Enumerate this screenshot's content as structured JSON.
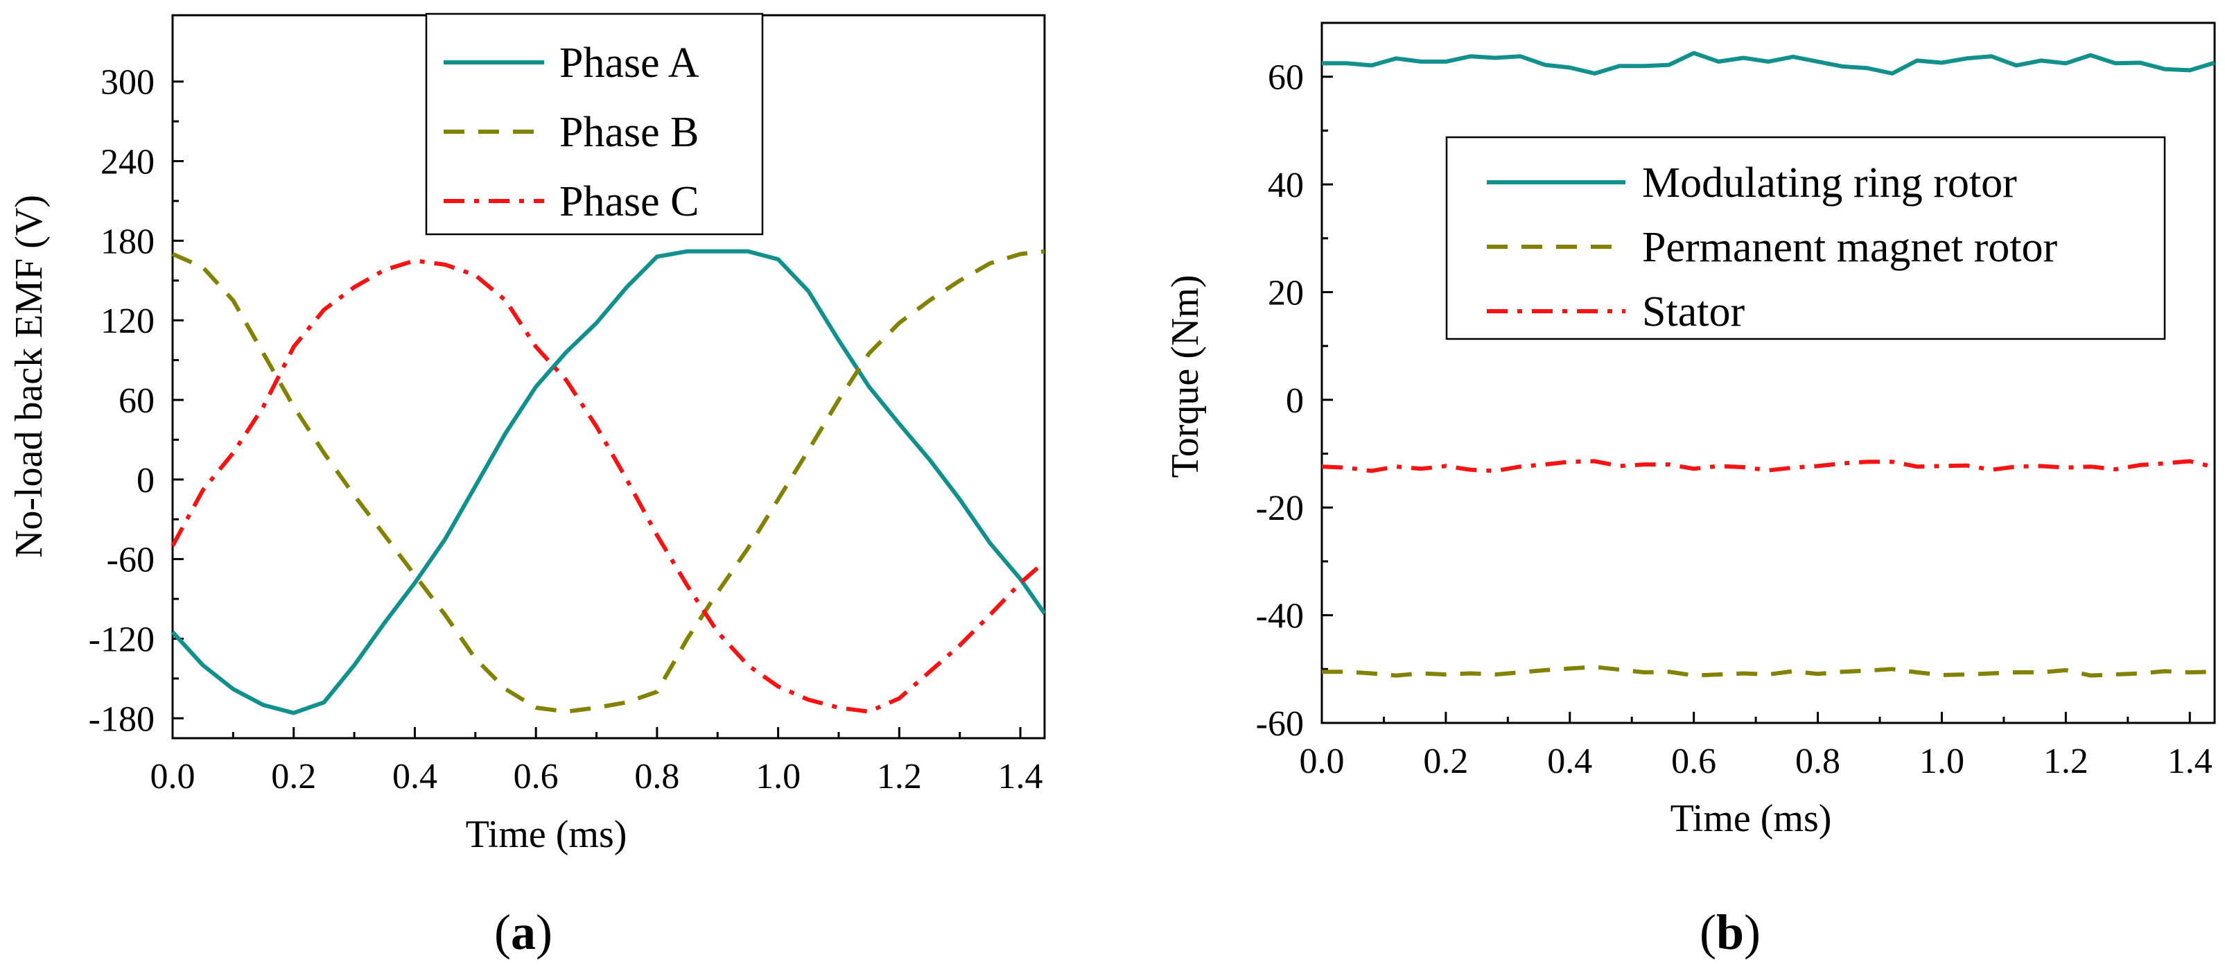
{
  "panels": [
    {
      "open": "(",
      "letter": "a",
      "close": ")"
    },
    {
      "open": "(",
      "letter": "b",
      "close": ")"
    }
  ],
  "chart_data": [
    {
      "type": "line",
      "xlabel": "Time (ms)",
      "ylabel": "No-load back EMF (V)",
      "xlim": [
        0,
        1.44
      ],
      "ylim": [
        -195,
        350
      ],
      "xticks": [
        0.0,
        0.2,
        0.4,
        0.6,
        0.8,
        1.0,
        1.2,
        1.4
      ],
      "xtick_labels": [
        "0.0",
        "0.2",
        "0.4",
        "0.6",
        "0.8",
        "1.0",
        "1.2",
        "1.4"
      ],
      "yticks": [
        -180,
        -120,
        -60,
        0,
        60,
        120,
        180,
        240,
        300
      ],
      "ytick_labels": [
        "-180",
        "-120",
        "-60",
        "0",
        "60",
        "120",
        "180",
        "240",
        "300"
      ],
      "legend_position": "top-center",
      "series": [
        {
          "name": "Phase A",
          "color": "#12908e",
          "dash": "solid",
          "x": [
            0,
            0.05,
            0.1,
            0.15,
            0.2,
            0.25,
            0.3,
            0.35,
            0.4,
            0.45,
            0.5,
            0.55,
            0.6,
            0.65,
            0.7,
            0.75,
            0.8,
            0.85,
            0.9,
            0.95,
            1.0,
            1.05,
            1.1,
            1.15,
            1.2,
            1.25,
            1.3,
            1.35,
            1.4,
            1.44
          ],
          "y": [
            -115,
            -140,
            -158,
            -170,
            -176,
            -168,
            -140,
            -108,
            -78,
            -45,
            -5,
            35,
            70,
            96,
            118,
            145,
            168,
            172,
            172,
            172,
            166,
            142,
            105,
            70,
            42,
            15,
            -15,
            -48,
            -75,
            -101
          ]
        },
        {
          "name": "Phase B",
          "color": "#828200",
          "dash": "dashed",
          "x": [
            0,
            0.05,
            0.1,
            0.15,
            0.2,
            0.25,
            0.3,
            0.35,
            0.4,
            0.45,
            0.5,
            0.55,
            0.6,
            0.65,
            0.7,
            0.75,
            0.8,
            0.85,
            0.9,
            0.95,
            1.0,
            1.05,
            1.1,
            1.15,
            1.2,
            1.25,
            1.3,
            1.35,
            1.4,
            1.44
          ],
          "y": [
            170,
            160,
            135,
            95,
            55,
            20,
            -12,
            -42,
            -72,
            -102,
            -135,
            -158,
            -172,
            -175,
            -172,
            -168,
            -160,
            -120,
            -85,
            -52,
            -15,
            22,
            60,
            95,
            118,
            135,
            150,
            163,
            170,
            172
          ]
        },
        {
          "name": "Phase C",
          "color": "#f51414",
          "dash": "dashdot",
          "x": [
            0,
            0.05,
            0.1,
            0.15,
            0.2,
            0.25,
            0.3,
            0.35,
            0.4,
            0.45,
            0.5,
            0.55,
            0.6,
            0.65,
            0.7,
            0.75,
            0.8,
            0.85,
            0.9,
            0.95,
            1.0,
            1.05,
            1.1,
            1.15,
            1.2,
            1.25,
            1.3,
            1.35,
            1.4,
            1.44
          ],
          "y": [
            -50,
            -8,
            20,
            55,
            100,
            128,
            145,
            158,
            165,
            162,
            154,
            135,
            100,
            75,
            40,
            0,
            -42,
            -80,
            -115,
            -140,
            -156,
            -166,
            -172,
            -175,
            -165,
            -145,
            -125,
            -102,
            -78,
            -62
          ]
        }
      ]
    },
    {
      "type": "line",
      "xlabel": "Time (ms)",
      "ylabel": "Torque (Nm)",
      "xlim": [
        0,
        1.44
      ],
      "ylim": [
        -60,
        70
      ],
      "xticks": [
        0.0,
        0.2,
        0.4,
        0.6,
        0.8,
        1.0,
        1.2,
        1.4
      ],
      "xtick_labels": [
        "0.0",
        "0.2",
        "0.4",
        "0.6",
        "0.8",
        "1.0",
        "1.2",
        "1.4"
      ],
      "yticks": [
        -60,
        -40,
        -20,
        0,
        20,
        40,
        60
      ],
      "ytick_labels": [
        "-60",
        "-40",
        "-20",
        "0",
        "20",
        "40",
        "60"
      ],
      "legend_position": "upper-center",
      "series": [
        {
          "name": "Modulating ring rotor",
          "color": "#12908e",
          "dash": "solid",
          "x": [
            0,
            0.04,
            0.08,
            0.12,
            0.16,
            0.2,
            0.24,
            0.28,
            0.32,
            0.36,
            0.4,
            0.44,
            0.48,
            0.52,
            0.56,
            0.6,
            0.64,
            0.68,
            0.72,
            0.76,
            0.8,
            0.84,
            0.88,
            0.92,
            0.96,
            1.0,
            1.04,
            1.08,
            1.12,
            1.16,
            1.2,
            1.24,
            1.28,
            1.32,
            1.36,
            1.4,
            1.44
          ],
          "y": [
            62.5,
            62.5,
            62.1,
            63.4,
            62.8,
            62.8,
            63.8,
            63.5,
            63.8,
            62.2,
            61.7,
            60.6,
            62.0,
            62.0,
            62.2,
            64.4,
            62.8,
            63.5,
            62.8,
            63.7,
            62.8,
            61.9,
            61.6,
            60.6,
            63.0,
            62.6,
            63.4,
            63.8,
            62.1,
            63.0,
            62.5,
            64.0,
            62.5,
            62.6,
            61.4,
            61.2,
            62.6
          ]
        },
        {
          "name": "Permanent magnet rotor",
          "color": "#828200",
          "dash": "dashed",
          "x": [
            0,
            0.04,
            0.08,
            0.12,
            0.16,
            0.2,
            0.24,
            0.28,
            0.32,
            0.36,
            0.4,
            0.44,
            0.48,
            0.52,
            0.56,
            0.6,
            0.64,
            0.68,
            0.72,
            0.76,
            0.8,
            0.84,
            0.88,
            0.92,
            0.96,
            1.0,
            1.04,
            1.08,
            1.12,
            1.16,
            1.2,
            1.24,
            1.28,
            1.32,
            1.36,
            1.4,
            1.44
          ],
          "y": [
            -50.5,
            -50.5,
            -50.8,
            -51.2,
            -50.8,
            -51.0,
            -50.8,
            -51.0,
            -50.6,
            -50.2,
            -49.9,
            -49.6,
            -50.1,
            -50.6,
            -50.5,
            -51.2,
            -51.0,
            -50.8,
            -51.0,
            -50.4,
            -50.9,
            -50.5,
            -50.3,
            -50.0,
            -50.6,
            -51.1,
            -51.0,
            -50.8,
            -50.6,
            -50.6,
            -50.2,
            -51.2,
            -51.0,
            -50.8,
            -50.4,
            -50.6,
            -50.5
          ]
        },
        {
          "name": "Stator",
          "color": "#f51414",
          "dash": "dashdot",
          "x": [
            0,
            0.04,
            0.08,
            0.12,
            0.16,
            0.2,
            0.24,
            0.28,
            0.32,
            0.36,
            0.4,
            0.44,
            0.48,
            0.52,
            0.56,
            0.6,
            0.64,
            0.68,
            0.72,
            0.76,
            0.8,
            0.84,
            0.88,
            0.92,
            0.96,
            1.0,
            1.04,
            1.08,
            1.12,
            1.16,
            1.2,
            1.24,
            1.28,
            1.32,
            1.36,
            1.4,
            1.44
          ],
          "y": [
            -12.4,
            -12.6,
            -13.2,
            -12.4,
            -12.8,
            -12.3,
            -13.0,
            -13.2,
            -12.4,
            -12.0,
            -11.5,
            -11.4,
            -12.3,
            -12.0,
            -12.0,
            -12.8,
            -12.3,
            -12.5,
            -13.1,
            -12.6,
            -12.3,
            -11.8,
            -11.5,
            -11.5,
            -12.4,
            -12.3,
            -12.2,
            -13.0,
            -12.4,
            -12.3,
            -12.6,
            -12.4,
            -12.9,
            -12.1,
            -11.8,
            -11.4,
            -12.5
          ]
        }
      ]
    }
  ]
}
